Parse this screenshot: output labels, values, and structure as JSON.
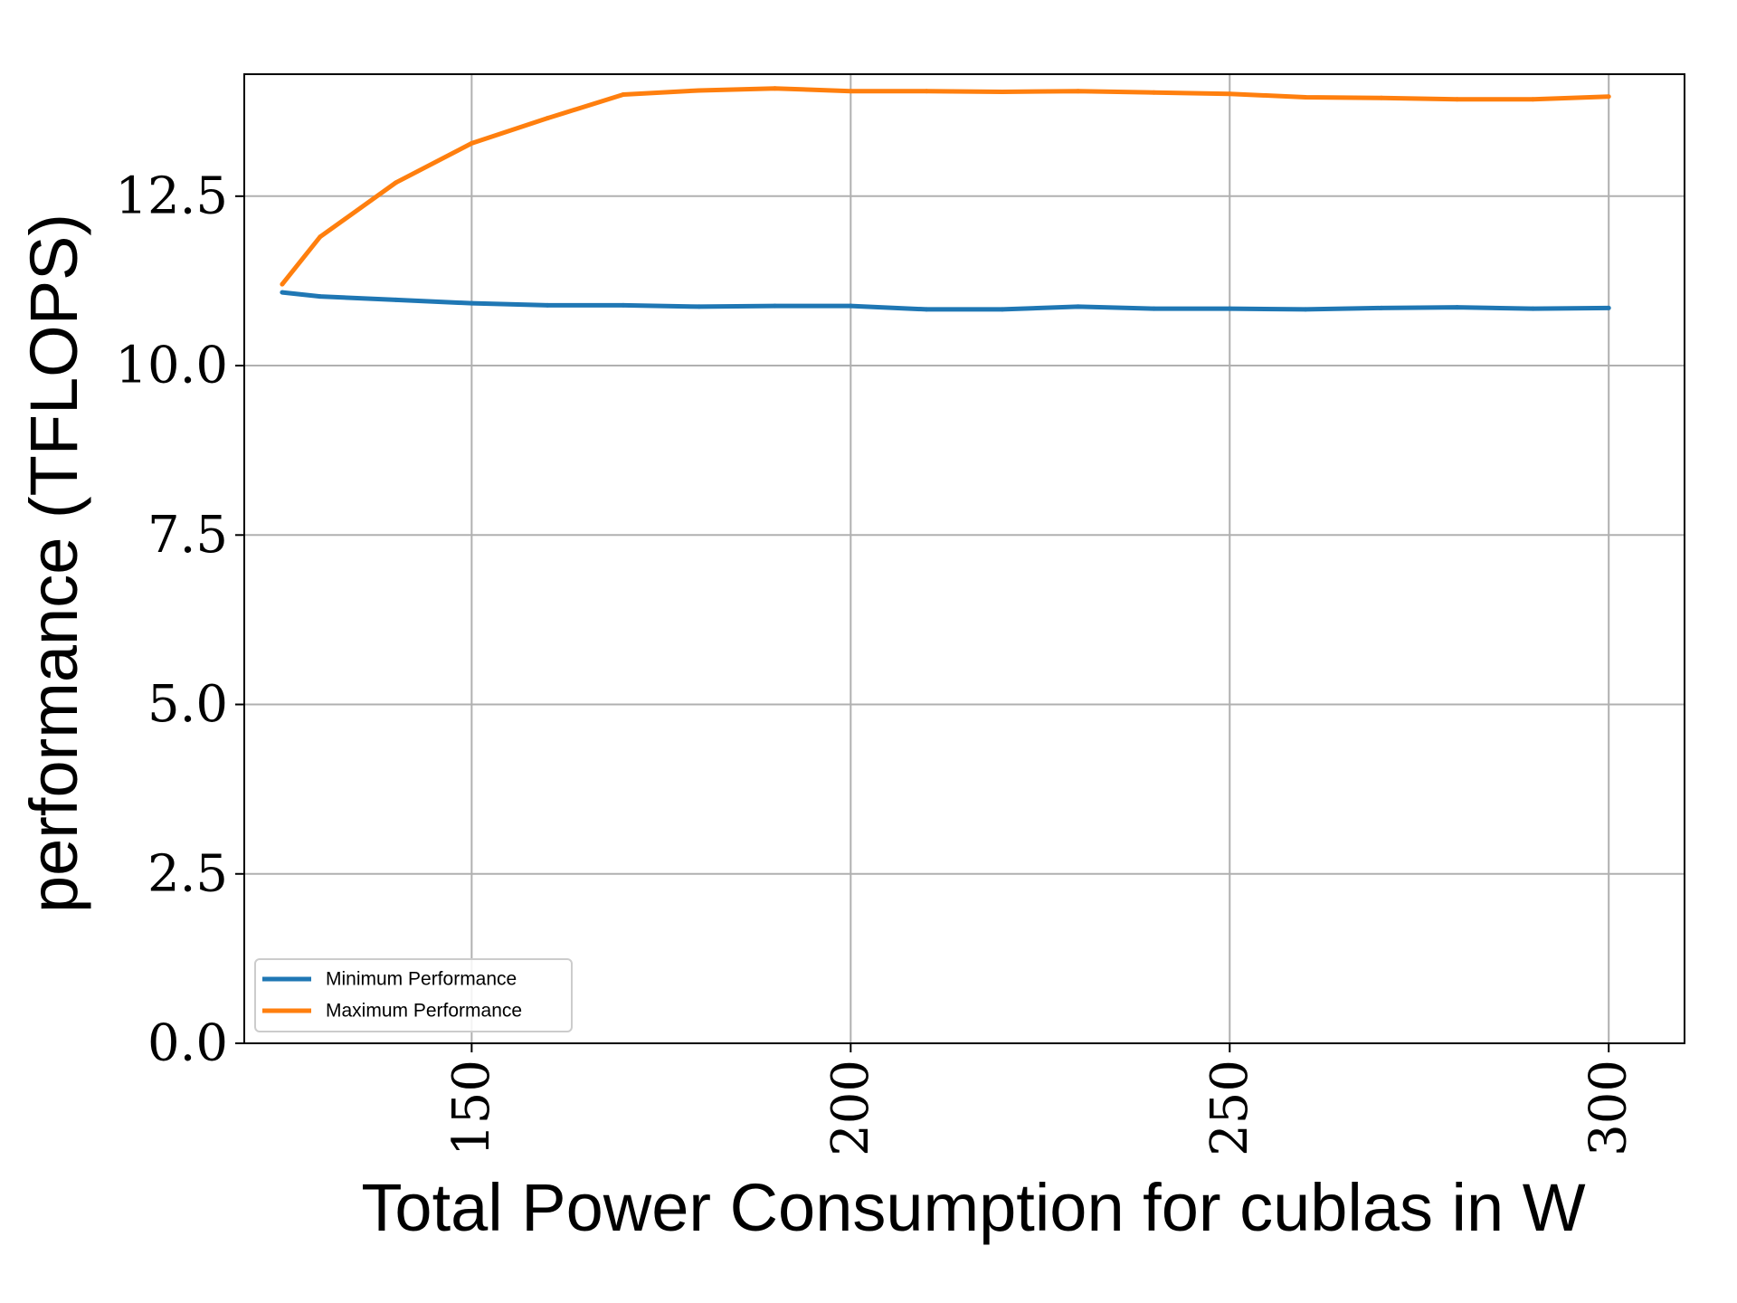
{
  "chart_data": {
    "type": "line",
    "xlabel": "Total Power Consumption for cublas in W",
    "ylabel": "performance (TFLOPS)",
    "xlim": [
      120,
      310
    ],
    "ylim": [
      0,
      14.3
    ],
    "xticks": [
      150,
      200,
      250,
      300
    ],
    "xtick_labels": [
      "150",
      "200",
      "250",
      "300"
    ],
    "yticks": [
      0,
      2.5,
      5,
      7.5,
      10,
      12.5
    ],
    "ytick_labels": [
      "0.0",
      "2.5",
      "5.0",
      "7.5",
      "10.0",
      "12.5"
    ],
    "grid": true,
    "legend_position": "lower-left",
    "series": [
      {
        "name": "Minimum Performance",
        "color": "#1f77b4",
        "x": [
          125,
          130,
          140,
          150,
          160,
          170,
          180,
          190,
          200,
          210,
          220,
          230,
          240,
          250,
          260,
          270,
          280,
          290,
          300
        ],
        "y": [
          11.08,
          11.02,
          10.97,
          10.92,
          10.89,
          10.89,
          10.87,
          10.88,
          10.88,
          10.83,
          10.83,
          10.87,
          10.84,
          10.84,
          10.83,
          10.85,
          10.86,
          10.84,
          10.85
        ]
      },
      {
        "name": "Maximum Performance",
        "color": "#ff7f0e",
        "x": [
          125,
          130,
          140,
          150,
          160,
          170,
          180,
          190,
          200,
          210,
          220,
          230,
          240,
          250,
          260,
          270,
          280,
          290,
          300
        ],
        "y": [
          11.2,
          11.9,
          12.7,
          13.28,
          13.65,
          14.0,
          14.06,
          14.09,
          14.05,
          14.05,
          14.04,
          14.05,
          14.03,
          14.01,
          13.96,
          13.95,
          13.93,
          13.93,
          13.97
        ]
      }
    ]
  }
}
